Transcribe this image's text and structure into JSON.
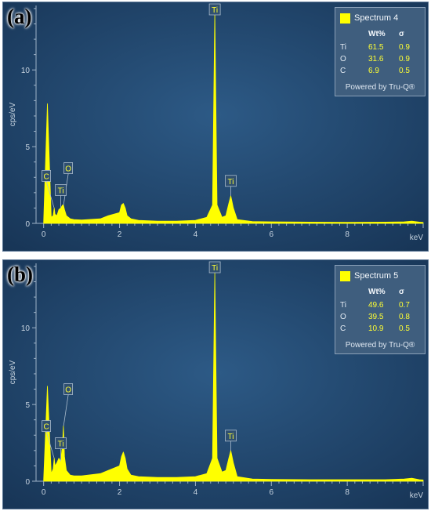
{
  "panels": [
    {
      "letter": "(a)",
      "legend": {
        "spectrum": "Spectrum 4",
        "header_wt": "Wt%",
        "header_sigma": "σ",
        "rows": [
          {
            "element": "Ti",
            "wt": "61.5",
            "sigma": "0.9"
          },
          {
            "element": "O",
            "wt": "31.6",
            "sigma": "0.9"
          },
          {
            "element": "C",
            "wt": "6.9",
            "sigma": "0.5"
          }
        ],
        "powered": "Powered by Tru-Q®"
      }
    },
    {
      "letter": "(b)",
      "legend": {
        "spectrum": "Spectrum 5",
        "header_wt": "Wt%",
        "header_sigma": "σ",
        "rows": [
          {
            "element": "Ti",
            "wt": "49.6",
            "sigma": "0.7"
          },
          {
            "element": "O",
            "wt": "39.5",
            "sigma": "0.8"
          },
          {
            "element": "C",
            "wt": "10.9",
            "sigma": "0.5"
          }
        ],
        "powered": "Powered by Tru-Q®"
      }
    }
  ],
  "chart_data": [
    {
      "type": "line",
      "title": "",
      "series": [
        {
          "name": "Spectrum 4",
          "color": "#ffff00",
          "x": [
            0.0,
            0.1,
            0.2,
            0.25,
            0.28,
            0.3,
            0.35,
            0.4,
            0.45,
            0.5,
            0.52,
            0.55,
            0.6,
            0.7,
            0.8,
            1.0,
            1.5,
            1.7,
            2.0,
            2.05,
            2.1,
            2.15,
            2.2,
            2.3,
            2.5,
            3.0,
            3.5,
            4.0,
            4.3,
            4.45,
            4.51,
            4.57,
            4.7,
            4.8,
            4.87,
            4.93,
            5.0,
            5.1,
            5.5,
            6.0,
            7.0,
            8.0,
            9.0,
            9.5,
            9.7,
            9.9,
            10.0
          ],
          "y": [
            0.1,
            7.8,
            0.4,
            0.5,
            1.0,
            0.6,
            0.5,
            0.9,
            1.0,
            1.2,
            1.2,
            0.9,
            0.5,
            0.3,
            0.25,
            0.22,
            0.3,
            0.5,
            0.7,
            1.2,
            1.3,
            1.0,
            0.5,
            0.3,
            0.2,
            0.15,
            0.15,
            0.2,
            0.4,
            1.2,
            13.8,
            1.2,
            0.4,
            0.5,
            1.2,
            1.8,
            1.0,
            0.25,
            0.12,
            0.1,
            0.08,
            0.07,
            0.08,
            0.1,
            0.15,
            0.08,
            0.06
          ]
        }
      ],
      "x_label": "keV",
      "y_label": "cps/eV",
      "xlim": [
        -0.2,
        10.0
      ],
      "ylim": [
        0,
        14.2
      ],
      "x_ticks": [
        0,
        2,
        4,
        6,
        8
      ],
      "y_ticks": [
        0,
        5,
        10
      ],
      "peak_labels": [
        {
          "label": "C",
          "x": 0.277,
          "y": 1.0
        },
        {
          "label": "O",
          "x": 0.525,
          "y": 1.2
        },
        {
          "label": "Ti",
          "x": 0.452,
          "y": 1.0
        },
        {
          "label": "Ti",
          "x": 4.51,
          "y": 13.8
        },
        {
          "label": "Ti",
          "x": 4.93,
          "y": 1.8
        }
      ]
    },
    {
      "type": "line",
      "title": "",
      "series": [
        {
          "name": "Spectrum 5",
          "color": "#ffff00",
          "x": [
            0.0,
            0.1,
            0.2,
            0.25,
            0.28,
            0.3,
            0.35,
            0.4,
            0.45,
            0.5,
            0.52,
            0.55,
            0.6,
            0.7,
            0.8,
            1.0,
            1.5,
            1.7,
            2.0,
            2.05,
            2.1,
            2.15,
            2.2,
            2.3,
            2.5,
            3.0,
            3.5,
            4.0,
            4.3,
            4.45,
            4.51,
            4.57,
            4.7,
            4.8,
            4.87,
            4.93,
            5.0,
            5.1,
            5.5,
            6.0,
            7.0,
            8.0,
            9.0,
            9.5,
            9.7,
            9.9,
            10.0
          ],
          "y": [
            0.1,
            6.2,
            0.5,
            0.8,
            1.5,
            1.0,
            1.2,
            1.5,
            1.3,
            2.5,
            3.6,
            1.6,
            0.7,
            0.4,
            0.35,
            0.35,
            0.5,
            0.7,
            1.0,
            1.6,
            1.9,
            1.5,
            0.8,
            0.4,
            0.3,
            0.25,
            0.25,
            0.3,
            0.5,
            1.5,
            13.6,
            1.5,
            0.6,
            0.7,
            1.4,
            2.0,
            1.2,
            0.3,
            0.15,
            0.12,
            0.1,
            0.1,
            0.1,
            0.15,
            0.2,
            0.1,
            0.08
          ]
        }
      ],
      "x_label": "keV",
      "y_label": "cps/eV",
      "xlim": [
        -0.2,
        10.0
      ],
      "ylim": [
        0,
        14.2
      ],
      "x_ticks": [
        0,
        2,
        4,
        6,
        8
      ],
      "y_ticks": [
        0,
        5,
        10
      ],
      "peak_labels": [
        {
          "label": "C",
          "x": 0.277,
          "y": 1.5
        },
        {
          "label": "O",
          "x": 0.525,
          "y": 3.6
        },
        {
          "label": "Ti",
          "x": 0.452,
          "y": 1.3
        },
        {
          "label": "Ti",
          "x": 4.51,
          "y": 13.6
        },
        {
          "label": "Ti",
          "x": 4.93,
          "y": 2.0
        }
      ]
    }
  ]
}
